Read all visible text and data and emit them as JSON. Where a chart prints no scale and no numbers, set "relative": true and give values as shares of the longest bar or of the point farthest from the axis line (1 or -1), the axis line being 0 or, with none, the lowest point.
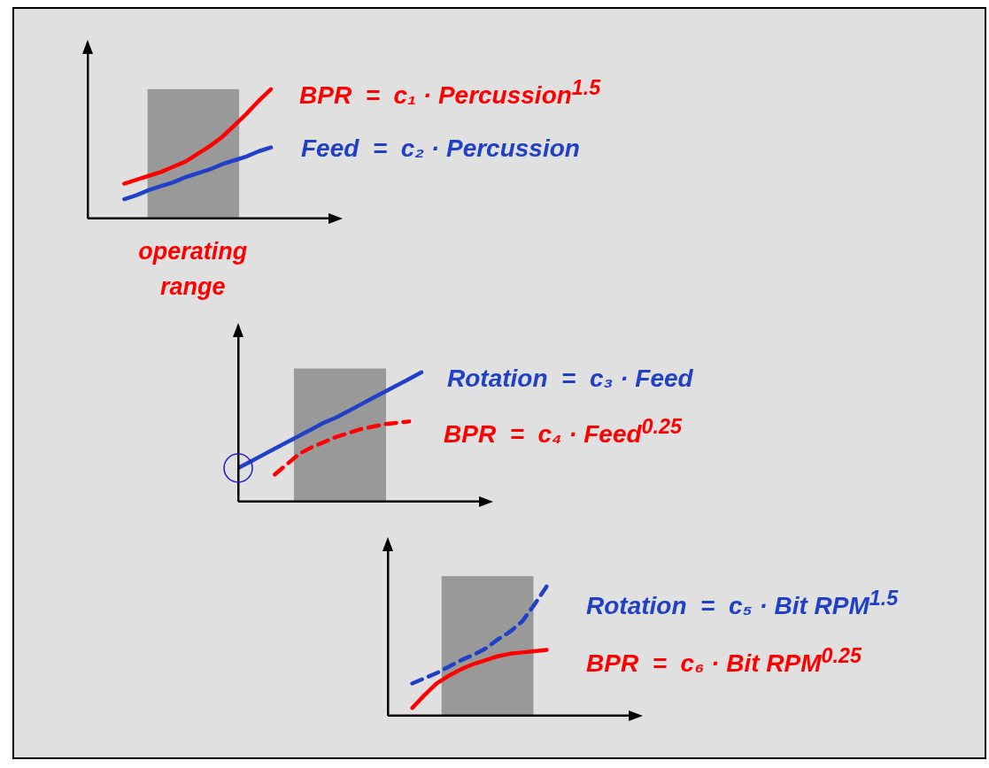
{
  "chart_data": [
    {
      "type": "line",
      "relative": true,
      "categories": [
        null,
        null,
        null,
        null,
        null,
        null,
        null,
        null,
        null,
        null,
        null,
        null,
        null,
        null,
        null,
        null,
        null,
        null,
        null,
        null,
        null
      ],
      "series": [
        {
          "name": "BPR  =  c₁ · Percussion$^{1.5}$",
          "color": "#ff0000",
          "values": [
            null,
            null,
            null,
            0.27,
            0.3,
            0.33,
            0.36,
            0.4,
            0.44,
            0.5,
            0.56,
            0.63,
            0.72,
            0.81,
            0.91,
            1.0,
            null,
            null,
            null,
            null,
            null
          ]
        },
        {
          "name": "Feed  =  c₂ · Percussion",
          "color": "#2040c8",
          "values": [
            null,
            null,
            null,
            0.15,
            0.18,
            0.22,
            0.25,
            0.28,
            0.32,
            0.35,
            0.38,
            0.42,
            0.45,
            0.48,
            0.52,
            0.55,
            null,
            null,
            null,
            null,
            null
          ]
        }
      ],
      "annotations": [
        "operating range"
      ]
    },
    {
      "type": "line",
      "relative": true,
      "categories": [
        null,
        null,
        null,
        null,
        null,
        null,
        null,
        null,
        null,
        null,
        null,
        null,
        null,
        null,
        null,
        null,
        null,
        null,
        null,
        null,
        null
      ],
      "series": [
        {
          "name": "Rotation  =  c₃ · Feed",
          "color": "#2040c8",
          "values": [
            0.26,
            0.31,
            0.36,
            0.41,
            0.46,
            0.51,
            0.56,
            0.61,
            0.65,
            0.7,
            0.75,
            0.8,
            0.85,
            0.9,
            0.95,
            1.0,
            null,
            null,
            null,
            null,
            null
          ]
        },
        {
          "name": "BPR  =  c₄ · Feed$^{0.25}$",
          "color": "#ff0000",
          "line_style": "dashed",
          "values": [
            null,
            null,
            null,
            0.21,
            0.29,
            0.37,
            0.42,
            0.46,
            0.5,
            0.53,
            0.56,
            0.58,
            0.6,
            0.61,
            0.62,
            null,
            null,
            null,
            null,
            null,
            null
          ]
        }
      ]
    },
    {
      "type": "line",
      "relative": true,
      "categories": [
        null,
        null,
        null,
        null,
        null,
        null,
        null,
        null,
        null,
        null,
        null,
        null,
        null,
        null,
        null,
        null,
        null,
        null,
        null,
        null,
        null
      ],
      "series": [
        {
          "name": "Rotation  =  c₅ · Bit RPM$^{1.5}$",
          "color": "#2040c8",
          "line_style": "dashed",
          "values": [
            null,
            null,
            0.25,
            0.29,
            0.33,
            0.38,
            0.43,
            0.47,
            0.52,
            0.59,
            0.65,
            0.73,
            0.86,
            1.0,
            null,
            null,
            null,
            null,
            null,
            null,
            null
          ]
        },
        {
          "name": "BPR  =  c₆ · Bit RPM$^{0.25}$",
          "color": "#ff0000",
          "values": [
            null,
            null,
            0.06,
            0.16,
            0.25,
            0.31,
            0.36,
            0.4,
            0.43,
            0.46,
            0.48,
            0.49,
            0.5,
            0.51,
            null,
            null,
            null,
            null,
            null,
            null,
            null
          ]
        }
      ]
    }
  ]
}
